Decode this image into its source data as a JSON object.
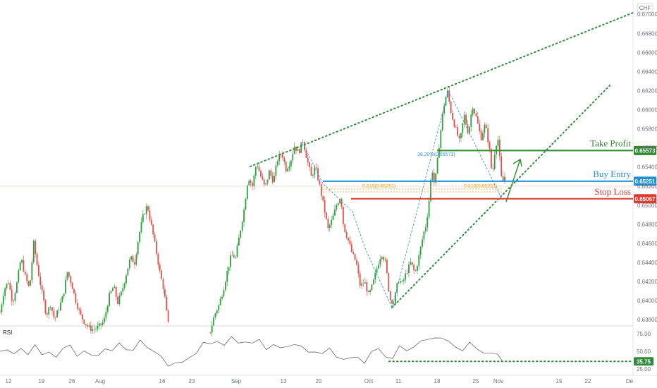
{
  "currency_label": "CHF",
  "indicator_label": "RSI",
  "colors": {
    "up": "#26a69a",
    "down": "#ef5350",
    "green_candle": "#2e9e3e",
    "red_candle": "#e0504a",
    "trend_green": "#2e8b3a",
    "take_profit": "#2e8b2e",
    "buy_entry": "#1e90d6",
    "stop_loss": "#e03a2f",
    "fib_orange": "#e8a33d",
    "fib_blue": "#4a90d9",
    "grid": "#eef0f3",
    "axis_text": "#6b6f7a",
    "rsi_line": "#555555"
  },
  "trade_levels": [
    {
      "name": "Take Profit",
      "price": 0.65573,
      "price_label": "0.65573",
      "color": "#2e8b2e"
    },
    {
      "name": "Buy Entry",
      "price": 0.65251,
      "price_label": "0.65251",
      "color": "#1e90d6"
    },
    {
      "name": "Stop Loss",
      "price": 0.65067,
      "price_label": "0.65067",
      "color": "#e03a2f"
    }
  ],
  "fib_labels": [
    {
      "text": "38.20%(0.65573)",
      "color": "#4a90d9"
    },
    {
      "text": "0.618(0.65251)",
      "color": "#e8a33d"
    },
    {
      "text": "0.618(0.65251)",
      "color": "#e8a33d"
    }
  ],
  "chart_data": {
    "type": "candlestick",
    "title": "",
    "x_ticks": [
      "12",
      "19",
      "26",
      "Aug",
      "16",
      "23",
      "Sep",
      "13",
      "20",
      "Oct",
      "11",
      "18",
      "25",
      "Nov",
      "15",
      "22",
      "De"
    ],
    "y_ticks": [
      "0.67000",
      "0.66800",
      "0.66600",
      "0.66400",
      "0.66200",
      "0.66000",
      "0.65800",
      "0.65600",
      "0.65400",
      "0.65200",
      "0.65000",
      "0.64800",
      "0.64600",
      "0.64400",
      "0.64200",
      "0.64000",
      "0.63800"
    ],
    "ylim": [
      0.6375,
      0.6712
    ],
    "grid": false,
    "close_path": [
      [
        0,
        0.6388
      ],
      [
        6,
        0.6412
      ],
      [
        12,
        0.642
      ],
      [
        18,
        0.6398
      ],
      [
        24,
        0.6418
      ],
      [
        30,
        0.6445
      ],
      [
        36,
        0.6425
      ],
      [
        42,
        0.6412
      ],
      [
        48,
        0.646
      ],
      [
        54,
        0.6432
      ],
      [
        60,
        0.6408
      ],
      [
        66,
        0.6385
      ],
      [
        72,
        0.6396
      ],
      [
        78,
        0.638
      ],
      [
        84,
        0.6392
      ],
      [
        90,
        0.6405
      ],
      [
        96,
        0.643
      ],
      [
        102,
        0.6418
      ],
      [
        108,
        0.64
      ],
      [
        114,
        0.6386
      ],
      [
        120,
        0.6378
      ],
      [
        126,
        0.6372
      ],
      [
        132,
        0.637
      ],
      [
        140,
        0.6372
      ],
      [
        148,
        0.6378
      ],
      [
        156,
        0.6405
      ],
      [
        162,
        0.6415
      ],
      [
        168,
        0.6398
      ],
      [
        174,
        0.641
      ],
      [
        180,
        0.6428
      ],
      [
        186,
        0.6445
      ],
      [
        192,
        0.644
      ],
      [
        198,
        0.6468
      ],
      [
        204,
        0.6488
      ],
      [
        210,
        0.65
      ],
      [
        216,
        0.6478
      ],
      [
        222,
        0.6455
      ],
      [
        228,
        0.643
      ],
      [
        234,
        0.641
      ],
      [
        238,
        0.6385
      ],
      [
        242,
        0.6366
      ],
      [
        260,
        0.6362
      ],
      [
        280,
        0.636
      ],
      [
        300,
        0.6368
      ],
      [
        306,
        0.6385
      ],
      [
        312,
        0.6395
      ],
      [
        318,
        0.641
      ],
      [
        324,
        0.643
      ],
      [
        330,
        0.6448
      ],
      [
        336,
        0.6445
      ],
      [
        342,
        0.647
      ],
      [
        348,
        0.6495
      ],
      [
        354,
        0.653
      ],
      [
        360,
        0.652
      ],
      [
        366,
        0.6545
      ],
      [
        372,
        0.653
      ],
      [
        378,
        0.6518
      ],
      [
        384,
        0.6535
      ],
      [
        390,
        0.6525
      ],
      [
        396,
        0.6548
      ],
      [
        402,
        0.6555
      ],
      [
        408,
        0.6538
      ],
      [
        414,
        0.6545
      ],
      [
        420,
        0.6562
      ],
      [
        426,
        0.6555
      ],
      [
        432,
        0.6568
      ],
      [
        438,
        0.6548
      ],
      [
        444,
        0.653
      ],
      [
        450,
        0.654
      ],
      [
        456,
        0.652
      ],
      [
        462,
        0.6498
      ],
      [
        468,
        0.6475
      ],
      [
        474,
        0.6485
      ],
      [
        480,
        0.65
      ],
      [
        486,
        0.651
      ],
      [
        490,
        0.6478
      ],
      [
        496,
        0.6465
      ],
      [
        502,
        0.645
      ],
      [
        508,
        0.644
      ],
      [
        514,
        0.6415
      ],
      [
        520,
        0.642
      ],
      [
        526,
        0.6405
      ],
      [
        532,
        0.6418
      ],
      [
        538,
        0.6435
      ],
      [
        544,
        0.645
      ],
      [
        550,
        0.644
      ],
      [
        556,
        0.6402
      ],
      [
        562,
        0.6398
      ],
      [
        568,
        0.6422
      ],
      [
        574,
        0.6418
      ],
      [
        580,
        0.643
      ],
      [
        586,
        0.644
      ],
      [
        592,
        0.6428
      ],
      [
        598,
        0.6448
      ],
      [
        604,
        0.647
      ],
      [
        608,
        0.648
      ],
      [
        612,
        0.6505
      ],
      [
        616,
        0.654
      ],
      [
        620,
        0.652
      ],
      [
        626,
        0.656
      ],
      [
        632,
        0.66
      ],
      [
        638,
        0.662
      ],
      [
        644,
        0.6595
      ],
      [
        650,
        0.658
      ],
      [
        656,
        0.6565
      ],
      [
        662,
        0.6595
      ],
      [
        668,
        0.6575
      ],
      [
        674,
        0.6605
      ],
      [
        680,
        0.659
      ],
      [
        686,
        0.657
      ],
      [
        692,
        0.6585
      ],
      [
        698,
        0.656
      ],
      [
        702,
        0.653
      ],
      [
        706,
        0.6558
      ],
      [
        710,
        0.6572
      ],
      [
        716,
        0.6522
      ],
      [
        720,
        0.653
      ]
    ],
    "swing_points": [
      {
        "x_label": "Oct 5",
        "price": 0.6392
      },
      {
        "x_label": "Oct 20",
        "price": 0.6635
      },
      {
        "x_label": "Nov 1",
        "price": 0.6508
      }
    ],
    "indicator": {
      "name": "RSI",
      "y_ticks": [
        "75.00",
        "50.00",
        "25.00"
      ],
      "current_value": "35.75",
      "ylim": [
        20,
        80
      ],
      "series": [
        [
          0,
          50
        ],
        [
          10,
          55
        ],
        [
          20,
          45
        ],
        [
          30,
          52
        ],
        [
          40,
          48
        ],
        [
          50,
          60
        ],
        [
          60,
          42
        ],
        [
          70,
          50
        ],
        [
          80,
          44
        ],
        [
          90,
          52
        ],
        [
          100,
          58
        ],
        [
          110,
          46
        ],
        [
          120,
          50
        ],
        [
          130,
          42
        ],
        [
          140,
          46
        ],
        [
          150,
          55
        ],
        [
          160,
          48
        ],
        [
          170,
          62
        ],
        [
          180,
          55
        ],
        [
          190,
          50
        ],
        [
          200,
          64
        ],
        [
          210,
          58
        ],
        [
          220,
          50
        ],
        [
          230,
          40
        ],
        [
          240,
          30
        ],
        [
          250,
          36
        ],
        [
          260,
          32
        ],
        [
          270,
          40
        ],
        [
          280,
          50
        ],
        [
          290,
          62
        ],
        [
          300,
          58
        ],
        [
          310,
          66
        ],
        [
          320,
          60
        ],
        [
          330,
          68
        ],
        [
          340,
          62
        ],
        [
          350,
          66
        ],
        [
          360,
          60
        ],
        [
          370,
          65
        ],
        [
          380,
          55
        ],
        [
          390,
          60
        ],
        [
          400,
          52
        ],
        [
          410,
          58
        ],
        [
          420,
          62
        ],
        [
          430,
          55
        ],
        [
          440,
          48
        ],
        [
          450,
          52
        ],
        [
          460,
          46
        ],
        [
          470,
          52
        ],
        [
          480,
          44
        ],
        [
          490,
          40
        ],
        [
          500,
          38
        ],
        [
          510,
          42
        ],
        [
          520,
          36
        ],
        [
          530,
          48
        ],
        [
          540,
          52
        ],
        [
          550,
          45
        ],
        [
          560,
          40
        ],
        [
          570,
          55
        ],
        [
          580,
          52
        ],
        [
          590,
          58
        ],
        [
          600,
          62
        ],
        [
          610,
          66
        ],
        [
          620,
          72
        ],
        [
          630,
          68
        ],
        [
          640,
          62
        ],
        [
          650,
          58
        ],
        [
          660,
          52
        ],
        [
          670,
          60
        ],
        [
          680,
          54
        ],
        [
          690,
          50
        ],
        [
          700,
          46
        ],
        [
          710,
          44
        ],
        [
          716,
          40
        ]
      ]
    }
  }
}
